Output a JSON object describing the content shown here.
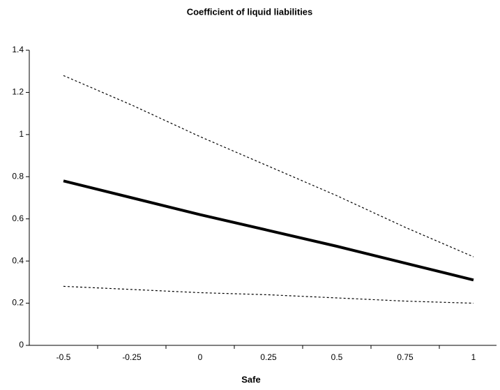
{
  "chart_data": {
    "type": "line",
    "title": "Coefficient of liquid liabilities",
    "x_label": "Safe",
    "categories": [
      "-0.5",
      "-0.25",
      "0",
      "0.25",
      "0.5",
      "0.75",
      "1"
    ],
    "series": [
      {
        "color": "#000000",
        "line_style": "dotted",
        "values": [
          1.28,
          1.14,
          0.99,
          0.85,
          0.71,
          0.56,
          0.42
        ]
      },
      {
        "color": "#000000",
        "line_style": "solid",
        "values": [
          0.78,
          0.7,
          0.62,
          0.545,
          0.47,
          0.39,
          0.31
        ]
      },
      {
        "color": "#000000",
        "line_style": "dotted",
        "values": [
          0.28,
          0.265,
          0.25,
          0.24,
          0.225,
          0.21,
          0.2
        ]
      }
    ],
    "ylim": [
      0,
      1.4
    ],
    "yticks": [
      0,
      0.2,
      0.4,
      0.6,
      0.8,
      1,
      1.2,
      1.4
    ],
    "grid": false
  }
}
